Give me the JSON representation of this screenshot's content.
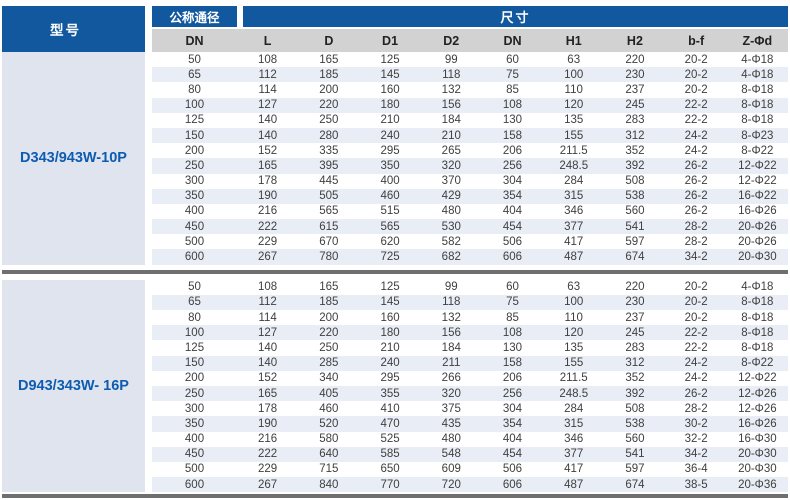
{
  "table": {
    "model_header": "型号",
    "dn_header": "公称通径",
    "size_header": "尺寸",
    "columns": [
      "DN",
      "L",
      "D",
      "D1",
      "D2",
      "DN",
      "H1",
      "H2",
      "b-f",
      "Z-Φd"
    ],
    "sections": [
      {
        "model": "D343/943W-10P",
        "rows": [
          [
            "50",
            "108",
            "165",
            "125",
            "99",
            "60",
            "63",
            "220",
            "20-2",
            "4-Φ18"
          ],
          [
            "65",
            "112",
            "185",
            "145",
            "118",
            "75",
            "100",
            "230",
            "20-2",
            "4-Φ18"
          ],
          [
            "80",
            "114",
            "200",
            "160",
            "132",
            "85",
            "110",
            "237",
            "20-2",
            "8-Φ18"
          ],
          [
            "100",
            "127",
            "220",
            "180",
            "156",
            "108",
            "120",
            "245",
            "22-2",
            "8-Φ18"
          ],
          [
            "125",
            "140",
            "250",
            "210",
            "184",
            "130",
            "135",
            "283",
            "22-2",
            "8-Φ18"
          ],
          [
            "150",
            "140",
            "280",
            "240",
            "210",
            "158",
            "155",
            "312",
            "24-2",
            "8-Φ23"
          ],
          [
            "200",
            "152",
            "335",
            "295",
            "265",
            "206",
            "211.5",
            "352",
            "24-2",
            "8-Φ22"
          ],
          [
            "250",
            "165",
            "395",
            "350",
            "320",
            "256",
            "248.5",
            "392",
            "26-2",
            "12-Φ22"
          ],
          [
            "300",
            "178",
            "445",
            "400",
            "370",
            "304",
            "284",
            "508",
            "26-2",
            "12-Φ22"
          ],
          [
            "350",
            "190",
            "505",
            "460",
            "429",
            "354",
            "315",
            "538",
            "26-2",
            "16-Φ22"
          ],
          [
            "400",
            "216",
            "565",
            "515",
            "480",
            "404",
            "346",
            "560",
            "26-2",
            "16-Φ26"
          ],
          [
            "450",
            "222",
            "615",
            "565",
            "530",
            "454",
            "377",
            "541",
            "28-2",
            "20-Φ26"
          ],
          [
            "500",
            "229",
            "670",
            "620",
            "582",
            "506",
            "417",
            "597",
            "28-2",
            "20-Φ26"
          ],
          [
            "600",
            "267",
            "780",
            "725",
            "682",
            "606",
            "487",
            "674",
            "34-2",
            "20-Φ30"
          ]
        ]
      },
      {
        "model": "D943/343W- 16P",
        "rows": [
          [
            "50",
            "108",
            "165",
            "125",
            "99",
            "60",
            "63",
            "220",
            "20-2",
            "4-Φ18"
          ],
          [
            "65",
            "112",
            "185",
            "145",
            "118",
            "75",
            "100",
            "230",
            "20-2",
            "8-Φ18"
          ],
          [
            "80",
            "114",
            "200",
            "160",
            "132",
            "85",
            "110",
            "237",
            "20-2",
            "8-Φ18"
          ],
          [
            "100",
            "127",
            "220",
            "180",
            "156",
            "108",
            "120",
            "245",
            "22-2",
            "8-Φ18"
          ],
          [
            "125",
            "140",
            "250",
            "210",
            "184",
            "130",
            "135",
            "283",
            "22-2",
            "8-Φ18"
          ],
          [
            "150",
            "140",
            "285",
            "240",
            "211",
            "158",
            "155",
            "312",
            "24-2",
            "8-Φ22"
          ],
          [
            "200",
            "152",
            "340",
            "295",
            "266",
            "206",
            "211.5",
            "352",
            "24-2",
            "12-Φ22"
          ],
          [
            "250",
            "165",
            "405",
            "355",
            "320",
            "256",
            "248.5",
            "392",
            "26-2",
            "12-Φ26"
          ],
          [
            "300",
            "178",
            "460",
            "410",
            "375",
            "304",
            "284",
            "508",
            "28-2",
            "12-Φ26"
          ],
          [
            "350",
            "190",
            "520",
            "470",
            "435",
            "354",
            "315",
            "538",
            "30-2",
            "16-Φ26"
          ],
          [
            "400",
            "216",
            "580",
            "525",
            "480",
            "404",
            "346",
            "560",
            "32-2",
            "16-Φ30"
          ],
          [
            "450",
            "222",
            "640",
            "585",
            "548",
            "454",
            "377",
            "541",
            "34-2",
            "20-Φ30"
          ],
          [
            "500",
            "229",
            "715",
            "650",
            "609",
            "506",
            "417",
            "597",
            "36-4",
            "20-Φ30"
          ],
          [
            "600",
            "267",
            "840",
            "770",
            "720",
            "606",
            "487",
            "674",
            "38-5",
            "20-Φ36"
          ]
        ]
      }
    ],
    "colors": {
      "header_blue": "#12589f",
      "model_text_blue": "#0d5cb0",
      "subheader_gray": "#d2d2d2",
      "row_stripe": "#e9edf5",
      "model_panel": "#dfe4ef",
      "divider_gray": "#6f6f6f"
    }
  }
}
